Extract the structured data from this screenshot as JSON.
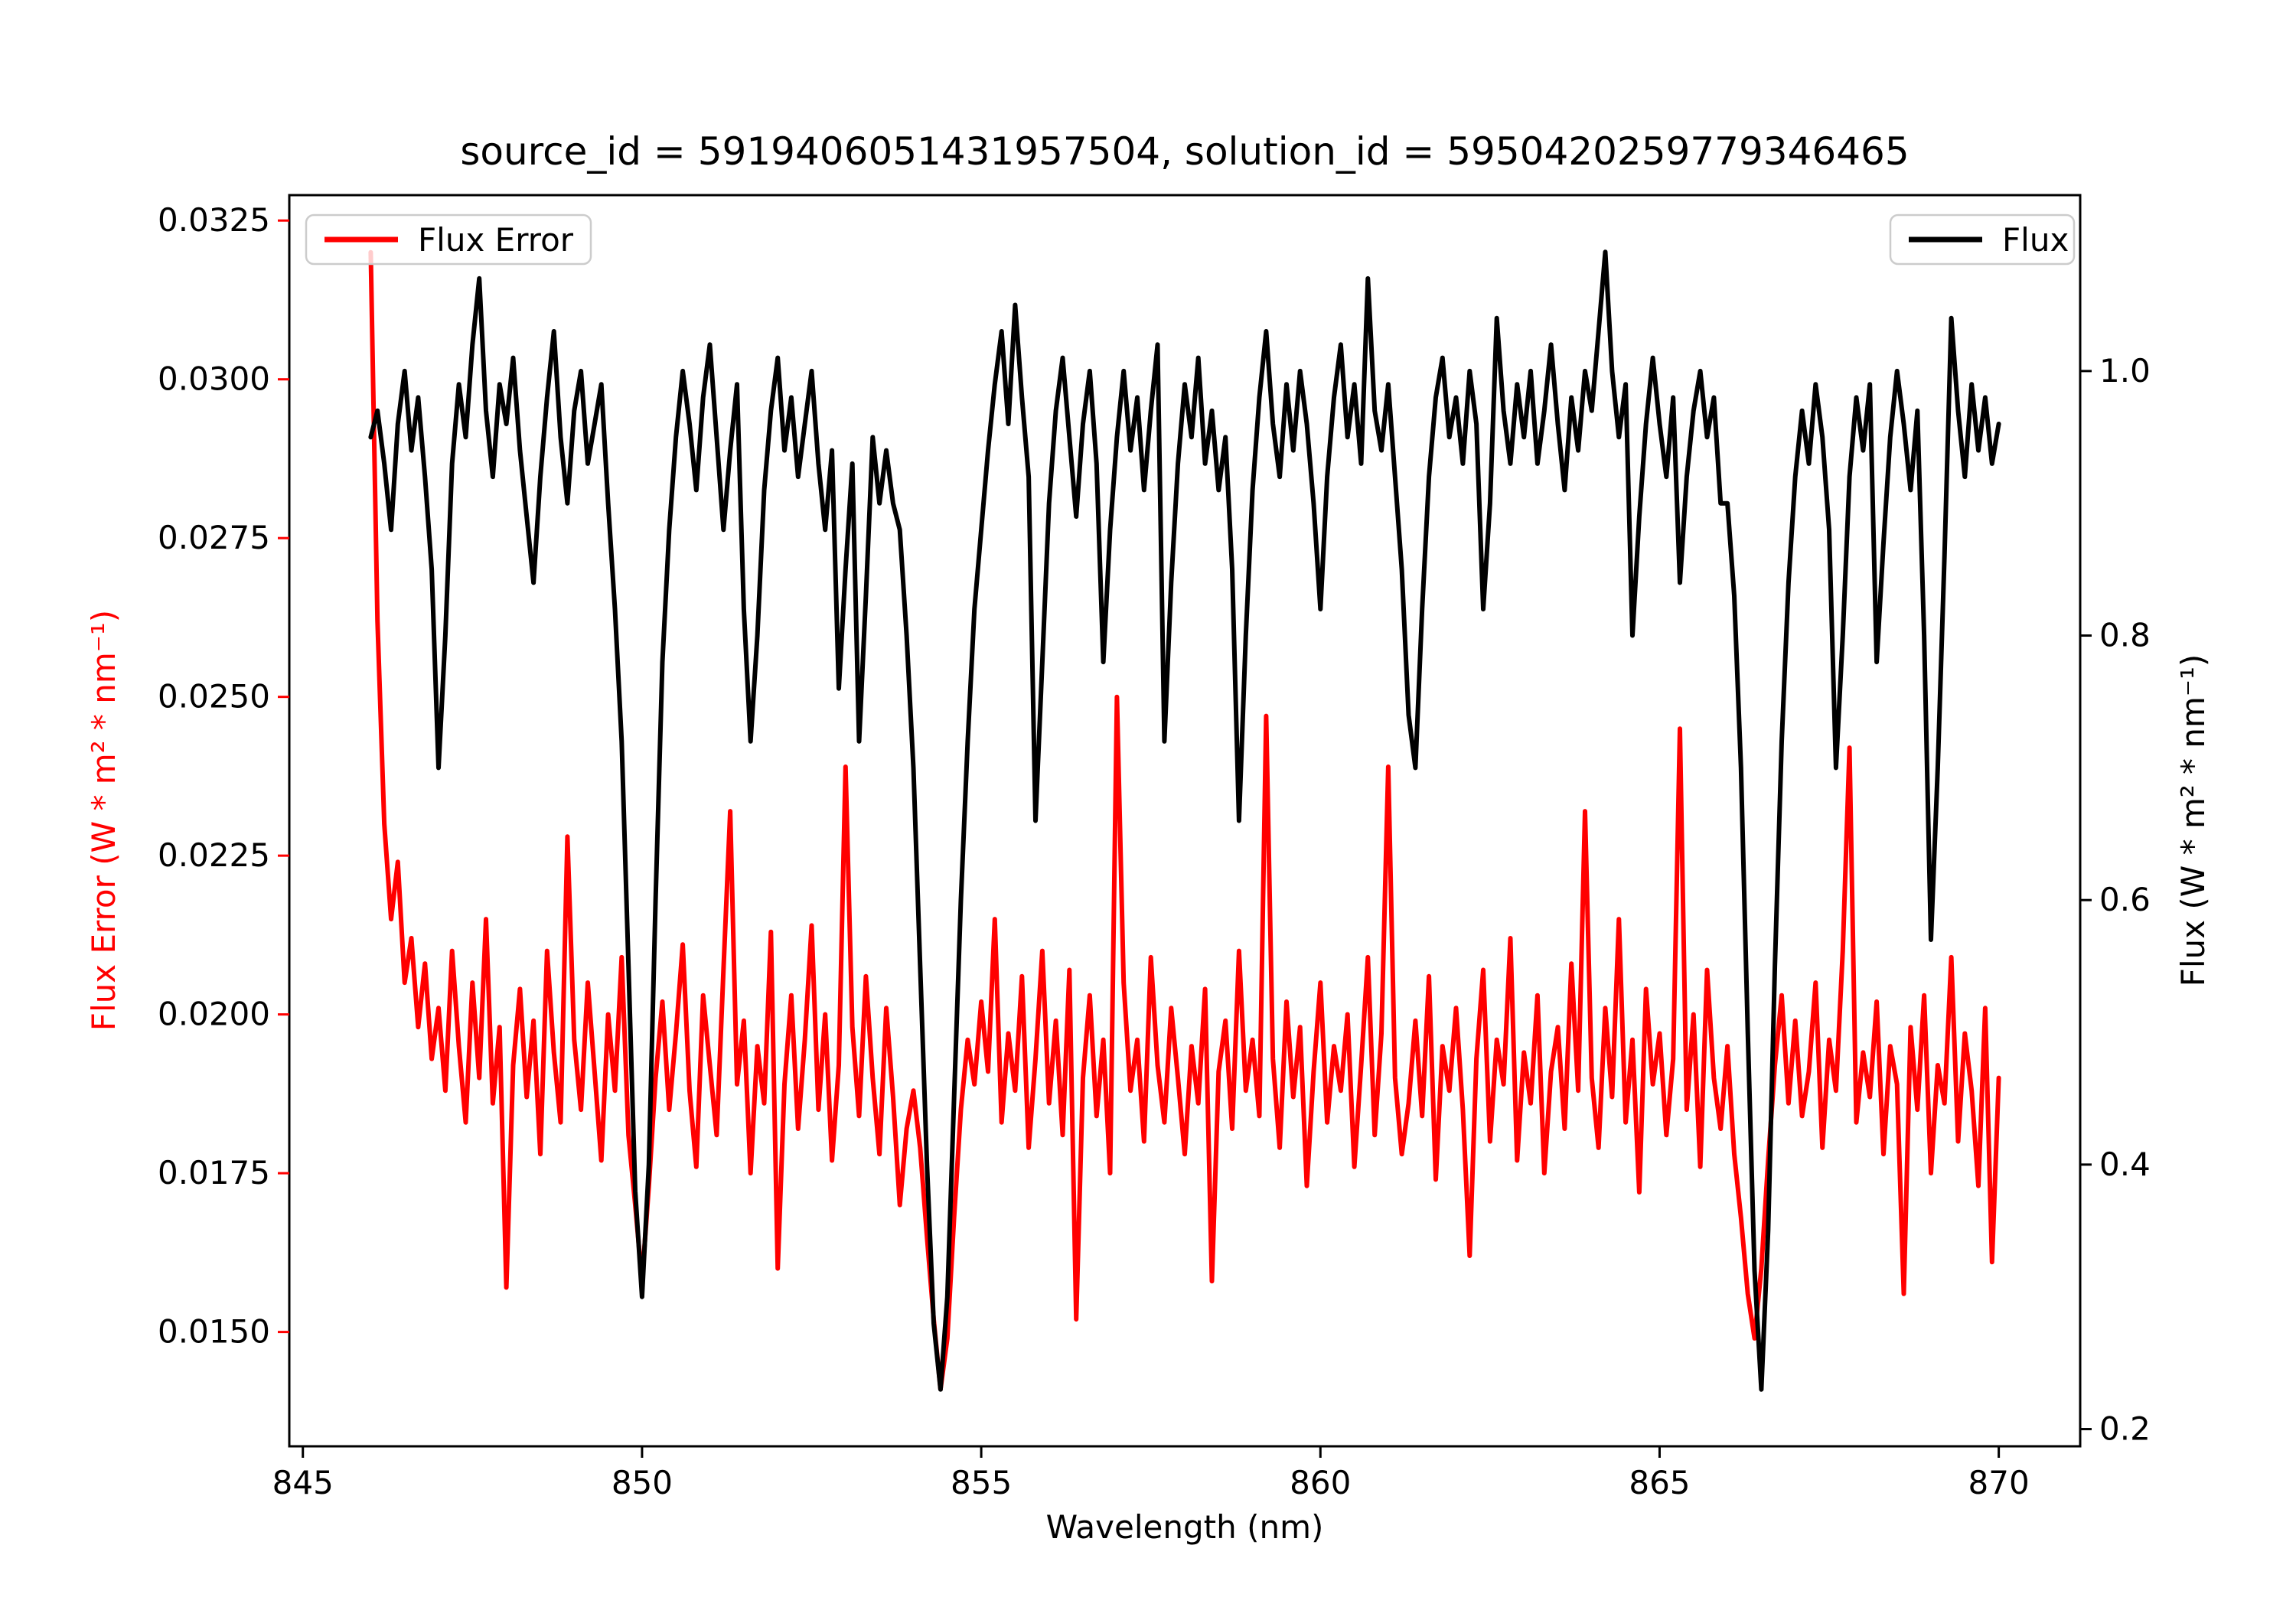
{
  "header": {
    "source_id": "5919406051431957504",
    "solution_id": "5950420259779346465"
  },
  "chart_data": {
    "type": "line",
    "title": "source_id = 5919406051431957504, solution_id = 5950420259779346465",
    "xlabel": "Wavelength (nm)",
    "ylabel_left": "Flux Error (W * m² * nm⁻¹)",
    "ylabel_right": "Flux (W * m² * nm⁻¹)",
    "xlim": [
      844.8,
      871.2
    ],
    "ylim_left": [
      0.0132,
      0.0329
    ],
    "ylim_right": [
      0.187,
      1.133
    ],
    "grid": false,
    "legend": [
      {
        "label": "Flux Error",
        "color": "#ff0000",
        "position": "upper left"
      },
      {
        "label": "Flux",
        "color": "#000000",
        "position": "upper right"
      }
    ],
    "xticks": {
      "values": [
        845,
        850,
        855,
        860,
        865,
        870
      ],
      "labels": [
        "845",
        "850",
        "855",
        "860",
        "865",
        "870"
      ]
    },
    "yticks_left": {
      "values": [
        0.015,
        0.0175,
        0.02,
        0.0225,
        0.025,
        0.0275,
        0.03,
        0.0325
      ],
      "labels": [
        "0.0150",
        "0.0175",
        "0.0200",
        "0.0225",
        "0.0250",
        "0.0275",
        "0.0300",
        "0.0325"
      ]
    },
    "yticks_right": {
      "values": [
        0.2,
        0.4,
        0.6,
        0.8,
        1.0
      ],
      "labels": [
        "0.2",
        "0.4",
        "0.6",
        "0.8",
        "1.0"
      ]
    },
    "series": [
      {
        "name": "Flux Error",
        "axis": "left",
        "color": "#ff0000",
        "x_start": 846.0,
        "x_step": 0.1,
        "values": [
          0.032,
          0.0262,
          0.023,
          0.0215,
          0.0224,
          0.0205,
          0.0212,
          0.0198,
          0.0208,
          0.0193,
          0.0201,
          0.0188,
          0.021,
          0.0195,
          0.0183,
          0.0205,
          0.019,
          0.0215,
          0.0186,
          0.0198,
          0.0157,
          0.0192,
          0.0204,
          0.0187,
          0.0199,
          0.0178,
          0.021,
          0.0194,
          0.0183,
          0.0228,
          0.0196,
          0.0185,
          0.0205,
          0.0191,
          0.0177,
          0.02,
          0.0188,
          0.0209,
          0.0181,
          0.017,
          0.0158,
          0.0173,
          0.019,
          0.0202,
          0.0185,
          0.0197,
          0.0211,
          0.0188,
          0.0176,
          0.0203,
          0.0192,
          0.0181,
          0.0207,
          0.0232,
          0.0189,
          0.0199,
          0.0175,
          0.0195,
          0.0186,
          0.0213,
          0.016,
          0.0189,
          0.0203,
          0.0182,
          0.0196,
          0.0214,
          0.0185,
          0.02,
          0.0177,
          0.0192,
          0.0239,
          0.0198,
          0.0184,
          0.0206,
          0.019,
          0.0178,
          0.0201,
          0.0187,
          0.017,
          0.0182,
          0.0188,
          0.0179,
          0.0165,
          0.0152,
          0.0141,
          0.0149,
          0.0168,
          0.0185,
          0.0196,
          0.0189,
          0.0202,
          0.0191,
          0.0215,
          0.0183,
          0.0197,
          0.0188,
          0.0206,
          0.0179,
          0.0193,
          0.021,
          0.0186,
          0.0199,
          0.0181,
          0.0207,
          0.0152,
          0.019,
          0.0203,
          0.0184,
          0.0196,
          0.0175,
          0.025,
          0.0205,
          0.0188,
          0.0196,
          0.018,
          0.0209,
          0.0192,
          0.0183,
          0.0201,
          0.019,
          0.0178,
          0.0195,
          0.0186,
          0.0204,
          0.0158,
          0.0191,
          0.0199,
          0.0182,
          0.021,
          0.0188,
          0.0196,
          0.0184,
          0.0247,
          0.0193,
          0.0179,
          0.0202,
          0.0187,
          0.0198,
          0.0173,
          0.0191,
          0.0205,
          0.0183,
          0.0195,
          0.0188,
          0.02,
          0.0176,
          0.0192,
          0.0209,
          0.0181,
          0.0197,
          0.0239,
          0.019,
          0.0178,
          0.0186,
          0.0199,
          0.0184,
          0.0206,
          0.0174,
          0.0195,
          0.0188,
          0.0201,
          0.0185,
          0.0162,
          0.0193,
          0.0207,
          0.018,
          0.0196,
          0.0189,
          0.0212,
          0.0177,
          0.0194,
          0.0186,
          0.0203,
          0.0175,
          0.0191,
          0.0198,
          0.0182,
          0.0208,
          0.0188,
          0.0232,
          0.019,
          0.0179,
          0.0201,
          0.0187,
          0.0215,
          0.0183,
          0.0196,
          0.0172,
          0.0204,
          0.0189,
          0.0197,
          0.0181,
          0.0193,
          0.0245,
          0.0185,
          0.02,
          0.0176,
          0.0207,
          0.019,
          0.0182,
          0.0195,
          0.0178,
          0.0168,
          0.0156,
          0.0149,
          0.016,
          0.0177,
          0.0192,
          0.0203,
          0.0186,
          0.0199,
          0.0184,
          0.0191,
          0.0205,
          0.0179,
          0.0196,
          0.0188,
          0.021,
          0.0242,
          0.0183,
          0.0194,
          0.0187,
          0.0202,
          0.0178,
          0.0195,
          0.0189,
          0.0156,
          0.0198,
          0.0185,
          0.0203,
          0.0175,
          0.0192,
          0.0186,
          0.0209,
          0.018,
          0.0197,
          0.0188,
          0.0173,
          0.0201,
          0.0161,
          0.019
        ]
      },
      {
        "name": "Flux",
        "axis": "right",
        "color": "#000000",
        "x_start": 846.0,
        "x_step": 0.1,
        "values": [
          0.95,
          0.97,
          0.93,
          0.88,
          0.96,
          1.0,
          0.94,
          0.98,
          0.92,
          0.85,
          0.7,
          0.8,
          0.93,
          0.99,
          0.95,
          1.02,
          1.07,
          0.97,
          0.92,
          0.99,
          0.96,
          1.01,
          0.94,
          0.89,
          0.84,
          0.92,
          0.98,
          1.03,
          0.95,
          0.9,
          0.97,
          1.0,
          0.93,
          0.96,
          0.99,
          0.9,
          0.82,
          0.72,
          0.55,
          0.38,
          0.3,
          0.4,
          0.6,
          0.78,
          0.88,
          0.95,
          1.0,
          0.96,
          0.91,
          0.98,
          1.02,
          0.95,
          0.88,
          0.94,
          0.99,
          0.82,
          0.72,
          0.8,
          0.91,
          0.97,
          1.01,
          0.94,
          0.98,
          0.92,
          0.96,
          1.0,
          0.93,
          0.88,
          0.94,
          0.76,
          0.85,
          0.93,
          0.72,
          0.83,
          0.95,
          0.9,
          0.94,
          0.9,
          0.88,
          0.8,
          0.7,
          0.55,
          0.4,
          0.28,
          0.23,
          0.3,
          0.45,
          0.6,
          0.72,
          0.82,
          0.88,
          0.94,
          0.99,
          1.03,
          0.96,
          1.05,
          0.98,
          0.92,
          0.66,
          0.78,
          0.9,
          0.97,
          1.01,
          0.95,
          0.89,
          0.96,
          1.0,
          0.93,
          0.78,
          0.88,
          0.95,
          1.0,
          0.94,
          0.98,
          0.91,
          0.97,
          1.02,
          0.72,
          0.84,
          0.93,
          0.99,
          0.95,
          1.01,
          0.93,
          0.97,
          0.91,
          0.95,
          0.85,
          0.66,
          0.8,
          0.91,
          0.98,
          1.03,
          0.96,
          0.92,
          0.99,
          0.94,
          1.0,
          0.96,
          0.9,
          0.82,
          0.92,
          0.98,
          1.02,
          0.95,
          0.99,
          0.93,
          1.07,
          0.97,
          0.94,
          0.99,
          0.92,
          0.85,
          0.74,
          0.7,
          0.82,
          0.92,
          0.98,
          1.01,
          0.95,
          0.98,
          0.93,
          1.0,
          0.96,
          0.82,
          0.9,
          1.04,
          0.97,
          0.93,
          0.99,
          0.95,
          1.0,
          0.93,
          0.97,
          1.02,
          0.96,
          0.91,
          0.98,
          0.94,
          1.0,
          0.97,
          1.03,
          1.09,
          1.0,
          0.95,
          0.99,
          0.8,
          0.89,
          0.96,
          1.01,
          0.96,
          0.92,
          0.98,
          0.84,
          0.92,
          0.97,
          1.0,
          0.95,
          0.98,
          0.9,
          0.9,
          0.83,
          0.7,
          0.5,
          0.32,
          0.23,
          0.35,
          0.55,
          0.72,
          0.84,
          0.92,
          0.97,
          0.93,
          0.99,
          0.95,
          0.88,
          0.7,
          0.8,
          0.92,
          0.98,
          0.94,
          0.99,
          0.78,
          0.87,
          0.95,
          1.0,
          0.96,
          0.91,
          0.97,
          0.8,
          0.57,
          0.7,
          0.86,
          1.04,
          0.97,
          0.92,
          0.99,
          0.94,
          0.98,
          0.93,
          0.96
        ]
      }
    ]
  }
}
